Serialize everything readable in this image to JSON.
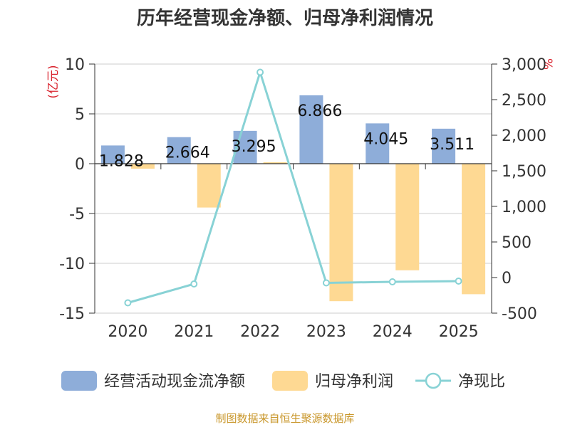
{
  "chart_data": {
    "type": "bar",
    "title": "历年经营现金净额、归母净利润情况",
    "categories": [
      "2020",
      "2021",
      "2022",
      "2023",
      "2024",
      "2025"
    ],
    "series": [
      {
        "name": "经营活动现金流净额",
        "type": "bar",
        "axis": "left",
        "color": "#8eadd9",
        "values": [
          1.828,
          2.664,
          3.295,
          6.866,
          4.045,
          3.511
        ],
        "labels": [
          "1.828",
          "2.664",
          "3.295",
          "6.866",
          "4.045",
          "3.511"
        ]
      },
      {
        "name": "归母净利润",
        "type": "bar",
        "axis": "left",
        "color": "#fed993",
        "values": [
          -0.5,
          -4.4,
          0.15,
          -13.8,
          -10.7,
          -13.1
        ]
      },
      {
        "name": "净现比",
        "type": "line",
        "axis": "right",
        "color": "#88d2d5",
        "values": [
          -355,
          -90,
          2885,
          -75,
          -60,
          -50
        ]
      }
    ],
    "y_left": {
      "unit_label": "(亿元)",
      "ylim": [
        -15,
        10
      ],
      "ticks": [
        10,
        5,
        0,
        -5,
        -10,
        -15
      ],
      "tick_labels": [
        "10",
        "5",
        "0",
        "-5",
        "-10",
        "-15"
      ]
    },
    "y_right": {
      "unit_label": "%",
      "ylim": [
        -500,
        3000
      ],
      "ticks": [
        3000,
        2500,
        2000,
        1500,
        1000,
        500,
        0,
        -500
      ],
      "tick_labels": [
        "3,000",
        "2,500",
        "2,000",
        "1,500",
        "1,000",
        "500",
        "0",
        "-500"
      ]
    },
    "grid": true,
    "legend_position": "bottom",
    "source": "制图数据来自恒生聚源数据库"
  }
}
